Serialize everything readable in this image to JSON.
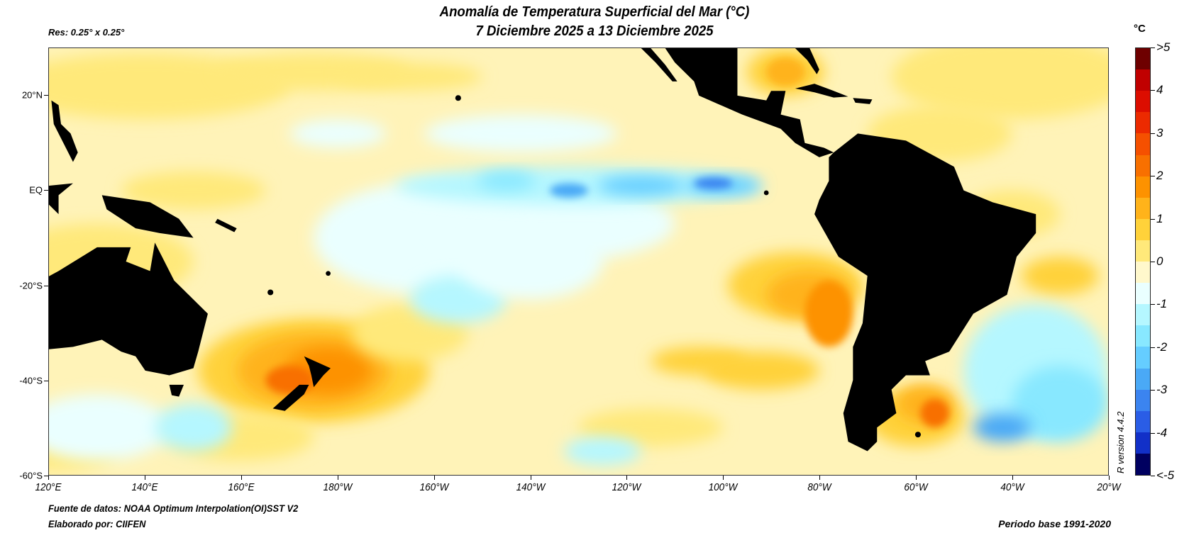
{
  "header": {
    "title_line1": "Anomalía de Temperatura Superficial del Mar (°C)",
    "title_line2": "7 Diciembre 2025 a 13 Diciembre 2025",
    "resolution": "Res: 0.25° x 0.25°"
  },
  "axes": {
    "lat_labels": [
      "20°N",
      "EQ",
      "-20°S",
      "-40°S",
      "-60°S"
    ],
    "lat_values": [
      20,
      0,
      -20,
      -40,
      -60
    ],
    "lon_labels": [
      "120°E",
      "140°E",
      "160°E",
      "180°W",
      "160°W",
      "140°W",
      "120°W",
      "100°W",
      "80°W",
      "60°W",
      "40°W",
      "20°W"
    ],
    "lat_range": [
      -60,
      30
    ],
    "lon_range_east": [
      120,
      340
    ]
  },
  "colorbar": {
    "unit": "°C",
    "labels": [
      ">5",
      "4",
      "3",
      "2",
      "1",
      "0",
      "-1",
      "-2",
      "-3",
      "-4",
      "<-5"
    ],
    "range": [
      -5,
      5
    ],
    "step": 0.5,
    "colors": [
      "#6e0000",
      "#c00000",
      "#dc0d00",
      "#ec2a00",
      "#f55000",
      "#f87000",
      "#fd9200",
      "#ffb31a",
      "#ffd23a",
      "#ffe97a",
      "#fff8cc",
      "#eaffff",
      "#b5f7ff",
      "#88e8ff",
      "#65cdff",
      "#4aa9f6",
      "#3b84f0",
      "#2a5de6",
      "#1230c8",
      "#000060"
    ]
  },
  "footer": {
    "source": "Fuente de datos: NOAA Optimum Interpolation(OI)SST V2",
    "author": "Elaborado por: CIIFEN",
    "base_period": "Periodo base 1991-2020",
    "r_version": "R version 4.4.2"
  }
}
